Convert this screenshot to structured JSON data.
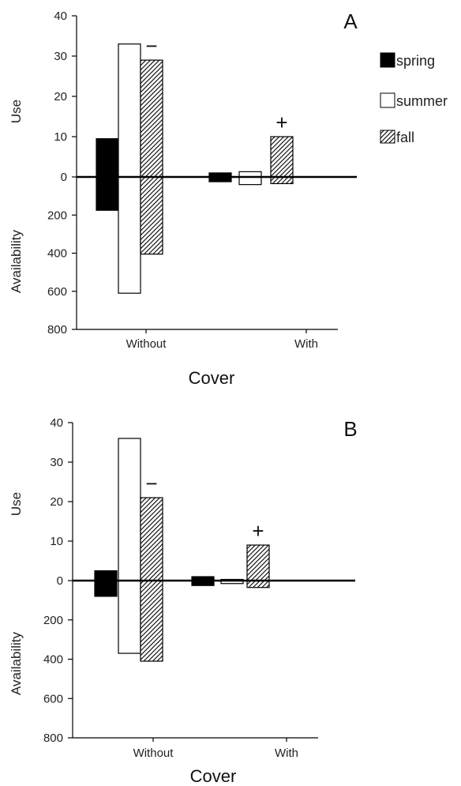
{
  "legend": [
    {
      "name": "spring",
      "key": "spring"
    },
    {
      "name": "summer",
      "key": "summer"
    },
    {
      "name": "fall",
      "key": "fall"
    }
  ],
  "colors": {
    "spring": "#000000",
    "summer": "#ffffff",
    "fall": "hatched",
    "outline": "#000000"
  },
  "chart_data": [
    {
      "type": "bar",
      "panel": "A",
      "categories": [
        "Without",
        "With"
      ],
      "xlabel": "Cover",
      "ylabel_top": "Use",
      "ylabel_bottom": "Availability",
      "use_ticks": [
        "0",
        "10",
        "20",
        "30",
        "40"
      ],
      "use_ylim": [
        0,
        40
      ],
      "avail_ticks": [
        "200",
        "400",
        "600",
        "800"
      ],
      "avail_ylim": [
        0,
        800
      ],
      "series": [
        {
          "name": "spring",
          "use": [
            9.5,
            1.0
          ],
          "availability": [
            175,
            25
          ]
        },
        {
          "name": "summer",
          "use": [
            33,
            1.3
          ],
          "availability": [
            610,
            40
          ]
        },
        {
          "name": "fall",
          "use": [
            29,
            10
          ],
          "availability": [
            405,
            35
          ]
        }
      ],
      "marks": [
        {
          "category": "Without",
          "series": "fall",
          "text": "−"
        },
        {
          "category": "With",
          "series": "fall",
          "text": "+"
        }
      ]
    },
    {
      "type": "bar",
      "panel": "B",
      "categories": [
        "Without",
        "With"
      ],
      "xlabel": "Cover",
      "ylabel_top": "Use",
      "ylabel_bottom": "Availability",
      "use_ticks": [
        "0",
        "10",
        "20",
        "30",
        "40"
      ],
      "use_ylim": [
        0,
        40
      ],
      "avail_ticks": [
        "200",
        "400",
        "600",
        "800"
      ],
      "avail_ylim": [
        0,
        800
      ],
      "series": [
        {
          "name": "spring",
          "use": [
            2.5,
            1.0
          ],
          "availability": [
            80,
            25
          ]
        },
        {
          "name": "summer",
          "use": [
            36,
            0.3
          ],
          "availability": [
            370,
            15
          ]
        },
        {
          "name": "fall",
          "use": [
            21,
            9
          ],
          "availability": [
            410,
            35
          ]
        }
      ],
      "marks": [
        {
          "category": "Without",
          "series": "fall",
          "text": "−"
        },
        {
          "category": "With",
          "series": "fall",
          "text": "+"
        }
      ]
    }
  ]
}
